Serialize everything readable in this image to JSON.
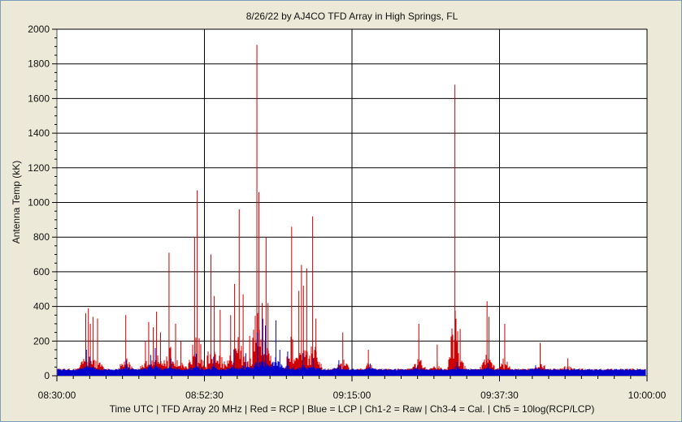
{
  "chart_data": {
    "type": "line",
    "title": "8/26/22  by  AJ4CO TFD Array  in  High Springs, FL",
    "ylabel": "Antenna Temp (kK)",
    "xlabel": "Time UTC | TFD Array 20 MHz | Red = RCP | Blue = LCP | Ch1-2 = Raw | Ch3-4 = Cal. | Ch5 = 10log(RCP/LCP)",
    "ylim": [
      0,
      2000
    ],
    "yticks": [
      "0",
      "200",
      "400",
      "600",
      "800",
      "1000",
      "1200",
      "1400",
      "1600",
      "1800",
      "2000"
    ],
    "xlim_minutes": [
      0,
      90
    ],
    "xticks": [
      "08:30:00",
      "08:52:30",
      "09:15:00",
      "09:37:30",
      "10:00:00"
    ],
    "grid": true,
    "colors": {
      "rcp": "#cc0000",
      "lcp": "#0000cc",
      "plot_bg": "#ffffff",
      "grid": "#000000"
    },
    "baseline": 35,
    "series": [
      {
        "name": "RCP",
        "spikes": [
          [
            4.4,
            360
          ],
          [
            4.8,
            390
          ],
          [
            5.1,
            300
          ],
          [
            5.5,
            340
          ],
          [
            6.2,
            330
          ],
          [
            10.5,
            350
          ],
          [
            13.5,
            200
          ],
          [
            14.0,
            310
          ],
          [
            14.7,
            280
          ],
          [
            15.2,
            370
          ],
          [
            15.8,
            250
          ],
          [
            17.1,
            710
          ],
          [
            18.1,
            300
          ],
          [
            18.9,
            200
          ],
          [
            21.0,
            800
          ],
          [
            21.4,
            1070
          ],
          [
            23.5,
            700
          ],
          [
            24.0,
            460
          ],
          [
            24.9,
            380
          ],
          [
            26.5,
            350
          ],
          [
            27.1,
            530
          ],
          [
            27.8,
            960
          ],
          [
            28.4,
            470
          ],
          [
            29.4,
            230
          ],
          [
            30.5,
            1910
          ],
          [
            30.8,
            1060
          ],
          [
            31.3,
            420
          ],
          [
            31.9,
            800
          ],
          [
            32.2,
            420
          ],
          [
            35.8,
            860
          ],
          [
            36.9,
            490
          ],
          [
            37.3,
            640
          ],
          [
            37.6,
            520
          ],
          [
            38.1,
            620
          ],
          [
            39.0,
            920
          ],
          [
            39.5,
            330
          ],
          [
            43.6,
            250
          ],
          [
            47.5,
            150
          ],
          [
            55.2,
            300
          ],
          [
            58.0,
            180
          ],
          [
            60.7,
            1680
          ],
          [
            61.5,
            270
          ],
          [
            65.6,
            430
          ],
          [
            65.9,
            340
          ],
          [
            68.3,
            300
          ],
          [
            73.7,
            190
          ],
          [
            77.9,
            100
          ]
        ]
      },
      {
        "name": "LCP",
        "spikes": [
          [
            4.5,
            150
          ],
          [
            5.0,
            110
          ],
          [
            10.6,
            90
          ],
          [
            14.3,
            120
          ],
          [
            15.0,
            160
          ],
          [
            17.4,
            100
          ],
          [
            21.2,
            130
          ],
          [
            23.9,
            110
          ],
          [
            27.0,
            150
          ],
          [
            28.8,
            130
          ],
          [
            30.6,
            250
          ],
          [
            31.4,
            330
          ],
          [
            31.8,
            290
          ],
          [
            33.4,
            320
          ],
          [
            34.0,
            150
          ],
          [
            35.2,
            140
          ],
          [
            37.5,
            130
          ],
          [
            39.1,
            100
          ],
          [
            43.0,
            90
          ],
          [
            47.8,
            70
          ],
          [
            55.0,
            60
          ],
          [
            61.0,
            80
          ],
          [
            65.8,
            70
          ],
          [
            73.0,
            60
          ]
        ]
      }
    ]
  }
}
